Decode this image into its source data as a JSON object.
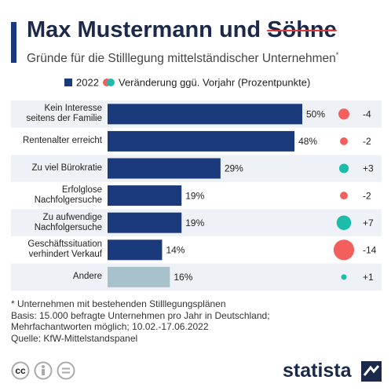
{
  "chart_data": {
    "type": "bar",
    "title": "Max Mustermann und",
    "title_struck": "Söhne",
    "subtitle": "Gründe für die Stilllegung mittelständischer Unternehmen",
    "subtitle_mark": "*",
    "categories": [
      "Kein Interesse\nseitens der Familie",
      "Rentenalter erreicht",
      "Zu viel Bürokratie",
      "Erfolglose\nNachfolgersuche",
      "Zu aufwendige\nNachfolgersuche",
      "Geschäftssituation\nverhindert Verkauf",
      "Andere"
    ],
    "series": [
      {
        "name": "2022",
        "color": "#1b3a7c",
        "colors": [
          "#1b3a7c",
          "#1b3a7c",
          "#1b3a7c",
          "#1b3a7c",
          "#1b3a7c",
          "#1b3a7c",
          "#a8c2cb"
        ],
        "values": [
          50,
          48,
          29,
          19,
          19,
          14,
          16
        ],
        "value_labels": [
          "50%",
          "48%",
          "29%",
          "19%",
          "19%",
          "14%",
          "16%"
        ]
      },
      {
        "name": "Veränderung ggü. Vorjahr (Prozentpunkte)",
        "color_up": "#1cbcaa",
        "color_down": "#f25f5c",
        "values": [
          -4,
          -2,
          3,
          -2,
          7,
          -14,
          1
        ],
        "value_labels": [
          "-4",
          "-2",
          "+3",
          "-2",
          "+7",
          "-14",
          "+1"
        ]
      }
    ],
    "notes": [
      "* Unternehmen mit bestehenden Stilllegungsplänen",
      "Basis: 15.000 befragte Unternehmen pro Jahr in Deutschland;\nMehrfachantworten möglich; 10.02.-17.06.2022",
      "Quelle: KfW-Mittelstandspanel"
    ],
    "brand": "statista"
  }
}
